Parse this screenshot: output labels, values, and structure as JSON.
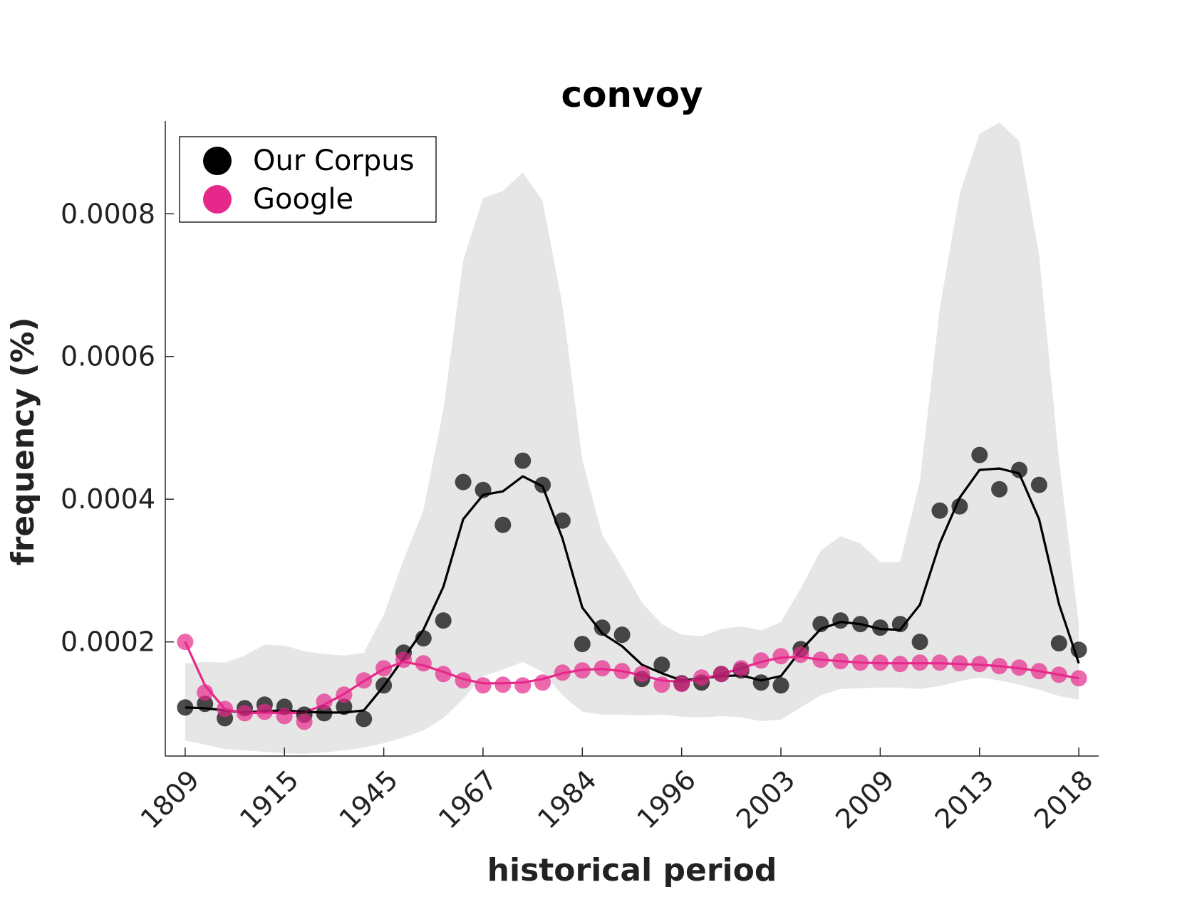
{
  "chart_data": {
    "type": "scatter",
    "title": "convoy",
    "xlabel": "historical period",
    "ylabel": "frequency (%)",
    "x_ticks": [
      "1809",
      "1915",
      "1945",
      "1967",
      "1984",
      "1996",
      "2003",
      "2009",
      "2013",
      "2018"
    ],
    "y_ticks": [
      "0.0002",
      "0.0004",
      "0.0006",
      "0.0008"
    ],
    "y_tick_values": [
      0.0002,
      0.0004,
      0.0006,
      0.0008
    ],
    "ylim": [
      4e-05,
      0.00093
    ],
    "xlim": [
      -1,
      46
    ],
    "n_points": 46,
    "tick_indices": [
      0,
      5,
      10,
      15,
      20,
      25,
      30,
      35,
      40,
      45
    ],
    "grid": false,
    "legend_position": "top-left",
    "colors": {
      "corpus": "#000000",
      "google": "#e6288a",
      "band": "#e6e6e6"
    },
    "series": [
      {
        "name": "Our Corpus",
        "points": [
          0.000108,
          0.000113,
          9.3e-05,
          0.000107,
          0.000112,
          0.000109,
          9.8e-05,
          0.0001,
          0.000109,
          9.2e-05,
          0.000139,
          0.000185,
          0.000205,
          0.00023,
          0.000424,
          0.000413,
          0.000364,
          0.000454,
          0.00042,
          0.00037,
          0.000197,
          0.00022,
          0.00021,
          0.000148,
          0.000168,
          0.000142,
          0.000143,
          0.000155,
          0.00016,
          0.000143,
          0.000139,
          0.00019,
          0.000225,
          0.00023,
          0.000225,
          0.00022,
          0.000225,
          0.0002,
          0.000384,
          0.00039,
          0.000462,
          0.000414,
          0.000441,
          0.00042,
          0.000198,
          0.000189
        ],
        "smoothed": [
          0.000108,
          0.000107,
          0.000104,
          0.000101,
          0.000103,
          0.000104,
          0.000102,
          0.000101,
          0.000101,
          0.000104,
          0.000138,
          0.000177,
          0.000217,
          0.000277,
          0.000372,
          0.000406,
          0.000411,
          0.000432,
          0.000418,
          0.000345,
          0.000248,
          0.000212,
          0.000194,
          0.000168,
          0.000156,
          0.000146,
          0.000149,
          0.000152,
          0.000153,
          0.000146,
          0.000152,
          0.000188,
          0.000218,
          0.000228,
          0.000225,
          0.000218,
          0.000217,
          0.000252,
          0.000338,
          0.000402,
          0.000441,
          0.000443,
          0.000436,
          0.000372,
          0.000253,
          0.00017
        ],
        "band_upper": [
          0.00017,
          0.000172,
          0.000171,
          0.000181,
          0.000196,
          0.000195,
          0.000187,
          0.000183,
          0.000181,
          0.000185,
          0.000238,
          0.000315,
          0.000385,
          0.000525,
          0.000735,
          0.000822,
          0.000832,
          0.000858,
          0.000818,
          0.000672,
          0.000455,
          0.00035,
          0.000305,
          0.000255,
          0.000225,
          0.00021,
          0.000208,
          0.000218,
          0.000222,
          0.000216,
          0.000228,
          0.000275,
          0.000328,
          0.000348,
          0.000338,
          0.000312,
          0.000312,
          0.000425,
          0.000668,
          0.000828,
          0.000912,
          0.000928,
          0.000902,
          0.000742,
          0.000455,
          0.000225
        ],
        "band_lower": [
          6.2e-05,
          5.6e-05,
          5e-05,
          4.8e-05,
          4.6e-05,
          4.4e-05,
          4.3e-05,
          4.5e-05,
          4.8e-05,
          5.2e-05,
          5.8e-05,
          6.6e-05,
          7.6e-05,
          9.3e-05,
          0.00012,
          0.000152,
          0.000161,
          0.000172,
          0.000158,
          0.000125,
          0.000102,
          9.8e-05,
          9.8e-05,
          9.7e-05,
          9.8e-05,
          9.5e-05,
          9.4e-05,
          9.6e-05,
          9.4e-05,
          8.9e-05,
          9.1e-05,
          0.000108,
          0.000125,
          0.000134,
          0.000135,
          0.000136,
          0.000136,
          0.000134,
          0.000138,
          0.000145,
          0.00015,
          0.000146,
          0.00014,
          0.000133,
          0.000124,
          0.000119
        ]
      },
      {
        "name": "Google",
        "points": [
          0.0002,
          0.000129,
          0.000106,
          0.0001,
          0.000102,
          9.6e-05,
          8.8e-05,
          0.000116,
          0.000126,
          0.000146,
          0.000163,
          0.000175,
          0.00017,
          0.000155,
          0.000146,
          0.000139,
          0.00014,
          0.000139,
          0.000143,
          0.000157,
          0.00016,
          0.000163,
          0.000159,
          0.000155,
          0.00014,
          0.000141,
          0.00015,
          0.000155,
          0.000163,
          0.000174,
          0.00018,
          0.000182,
          0.000175,
          0.000173,
          0.000171,
          0.000171,
          0.000169,
          0.000171,
          0.000171,
          0.00017,
          0.000169,
          0.000166,
          0.000164,
          0.000159,
          0.000154,
          0.000149
        ],
        "smoothed": [
          0.0002,
          0.000139,
          0.000106,
          0.0001,
          0.000101,
          0.0001,
          0.000101,
          0.000112,
          0.000127,
          0.000145,
          0.000162,
          0.000172,
          0.000167,
          0.000158,
          0.000148,
          0.000142,
          0.000142,
          0.000143,
          0.000148,
          0.000156,
          0.000161,
          0.000162,
          0.000159,
          0.000153,
          0.000146,
          0.000144,
          0.000148,
          0.000155,
          0.000163,
          0.000172,
          0.000178,
          0.000179,
          0.000175,
          0.000173,
          0.000171,
          0.00017,
          0.00017,
          0.00017,
          0.00017,
          0.000169,
          0.000168,
          0.000166,
          0.000163,
          0.000159,
          0.000154,
          0.000149
        ]
      }
    ]
  }
}
